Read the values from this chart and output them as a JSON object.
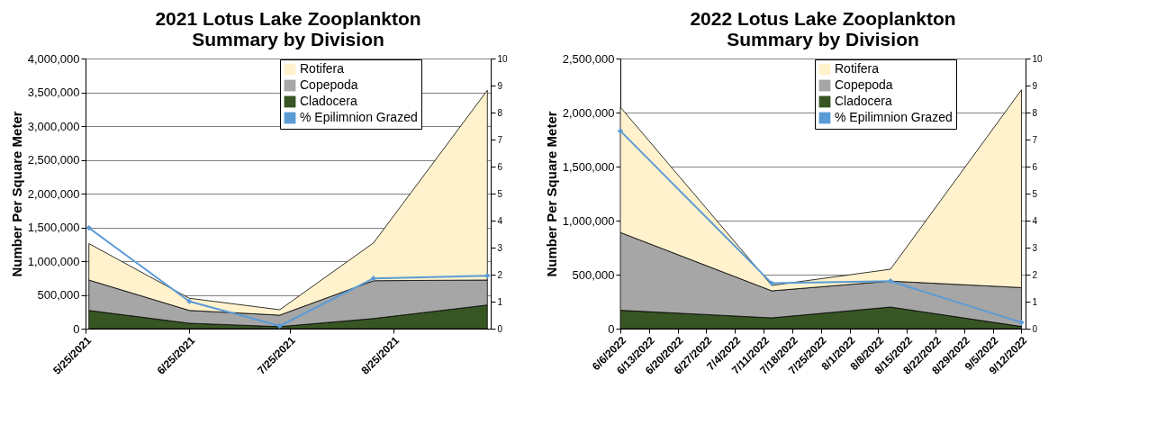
{
  "chart_data": [
    {
      "type": "area",
      "title": "2021 Lotus Lake Zooplankton\nSummary by Division",
      "ylabel": "Number Per Square Meter",
      "stacked": true,
      "grid": "y",
      "legend": "top right",
      "x": [
        "2021-05-26",
        "2021-06-25",
        "2021-07-22",
        "2021-08-19",
        "2021-09-22"
      ],
      "xlim": [
        "2021-05-25",
        "2021-09-23"
      ],
      "xticks": [
        {
          "value": "2021-05-25",
          "label": "5/25/2021"
        },
        {
          "value": "2021-06-25",
          "label": "6/25/2021"
        },
        {
          "value": "2021-07-25",
          "label": "7/25/2021"
        },
        {
          "value": "2021-08-25",
          "label": "8/25/2021"
        }
      ],
      "ylim": [
        0,
        4000000
      ],
      "yticks": [
        {
          "value": 0,
          "label": "0"
        },
        {
          "value": 500000,
          "label": "500,000"
        },
        {
          "value": 1000000,
          "label": "1,000,000"
        },
        {
          "value": 1500000,
          "label": "1,500,000"
        },
        {
          "value": 2000000,
          "label": "2,000,000"
        },
        {
          "value": 2500000,
          "label": "2,500,000"
        },
        {
          "value": 3000000,
          "label": "3,000,000"
        },
        {
          "value": 3500000,
          "label": "3,500,000"
        },
        {
          "value": 4000000,
          "label": "4,000,000"
        }
      ],
      "y2lim": [
        0,
        10
      ],
      "y2ticks": [
        0,
        1,
        2,
        3,
        4,
        5,
        6,
        7,
        8,
        9,
        10
      ],
      "series": [
        {
          "name": "Cladocera",
          "color": "#375623",
          "values": [
            270000,
            80000,
            30000,
            150000,
            350000
          ]
        },
        {
          "name": "Copepoda",
          "color": "#a6a6a6",
          "values": [
            450000,
            190000,
            170000,
            560000,
            370000
          ]
        },
        {
          "name": "Rotifera",
          "color": "#fff2cc",
          "values": [
            540000,
            180000,
            80000,
            560000,
            2810000
          ]
        },
        {
          "name": "% Epilimnion Grazed",
          "type": "line",
          "axis": "y2",
          "color": "#5b9bd5",
          "marker": "diamond",
          "values": [
            3.73,
            1.01,
            0.1,
            1.86,
            1.96
          ]
        }
      ]
    },
    {
      "type": "area",
      "title": "2022 Lotus Lake Zooplankton\nSummary by Division",
      "ylabel": "Number Per Square Meter",
      "stacked": true,
      "grid": "y",
      "legend": "top right",
      "x": [
        "2022-06-06",
        "2022-07-13",
        "2022-08-11",
        "2022-09-12"
      ],
      "xlim": [
        "2022-06-06",
        "2022-09-13"
      ],
      "xticks": [
        {
          "value": "2022-06-06",
          "label": "6/6/2022"
        },
        {
          "value": "2022-06-13",
          "label": "6/13/2022"
        },
        {
          "value": "2022-06-20",
          "label": "6/20/2022"
        },
        {
          "value": "2022-06-27",
          "label": "6/27/2022"
        },
        {
          "value": "2022-07-04",
          "label": "7/4/2022"
        },
        {
          "value": "2022-07-11",
          "label": "7/11/2022"
        },
        {
          "value": "2022-07-18",
          "label": "7/18/2022"
        },
        {
          "value": "2022-07-25",
          "label": "7/25/2022"
        },
        {
          "value": "2022-08-01",
          "label": "8/1/2022"
        },
        {
          "value": "2022-08-08",
          "label": "8/8/2022"
        },
        {
          "value": "2022-08-15",
          "label": "8/15/2022"
        },
        {
          "value": "2022-08-22",
          "label": "8/22/2022"
        },
        {
          "value": "2022-08-29",
          "label": "8/29/2022"
        },
        {
          "value": "2022-09-05",
          "label": "9/5/2022"
        },
        {
          "value": "2022-09-12",
          "label": "9/12/2022"
        }
      ],
      "ylim": [
        0,
        2500000
      ],
      "yticks": [
        {
          "value": 0,
          "label": "0"
        },
        {
          "value": 500000,
          "label": "500,000"
        },
        {
          "value": 1000000,
          "label": "1,000,000"
        },
        {
          "value": 1500000,
          "label": "1,500,000"
        },
        {
          "value": 2000000,
          "label": "2,000,000"
        },
        {
          "value": 2500000,
          "label": "2,500,000"
        }
      ],
      "y2lim": [
        0,
        10
      ],
      "y2ticks": [
        0,
        1,
        2,
        3,
        4,
        5,
        6,
        7,
        8,
        9,
        10
      ],
      "series": [
        {
          "name": "Cladocera",
          "color": "#375623",
          "values": [
            170000,
            100000,
            200000,
            20000
          ]
        },
        {
          "name": "Copepoda",
          "color": "#a6a6a6",
          "values": [
            720000,
            250000,
            240000,
            360000
          ]
        },
        {
          "name": "Rotifera",
          "color": "#fff2cc",
          "values": [
            1160000,
            50000,
            110000,
            1830000
          ]
        },
        {
          "name": "% Epilimnion Grazed",
          "type": "line",
          "axis": "y2",
          "color": "#5b9bd5",
          "marker": "diamond",
          "values": [
            7.32,
            1.68,
            1.76,
            0.23
          ]
        }
      ]
    }
  ]
}
